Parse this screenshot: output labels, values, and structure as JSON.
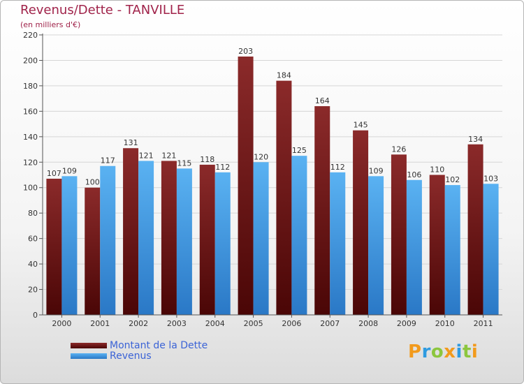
{
  "chart_data": {
    "type": "bar",
    "title": "Revenus/Dette - TANVILLE",
    "subtitle": "(en milliers d'€)",
    "categories": [
      "2000",
      "2001",
      "2002",
      "2003",
      "2004",
      "2005",
      "2006",
      "2007",
      "2008",
      "2009",
      "2010",
      "2011"
    ],
    "series": [
      {
        "name": "Montant de la Dette",
        "values": [
          107,
          100,
          131,
          121,
          118,
          203,
          184,
          164,
          145,
          126,
          110,
          134
        ],
        "color": "#7a1c1c"
      },
      {
        "name": "Revenus",
        "values": [
          109,
          117,
          121,
          115,
          112,
          120,
          125,
          112,
          109,
          106,
          102,
          103
        ],
        "color": "#4ea6e8"
      }
    ],
    "ylim": [
      0,
      220
    ],
    "yticks": [
      0,
      20,
      40,
      60,
      80,
      100,
      120,
      140,
      160,
      180,
      200,
      220
    ],
    "grid": true,
    "legend_position": "bottom-left"
  },
  "logo": {
    "text": "Proxiti",
    "letters": [
      {
        "ch": "P",
        "color": "#f29a1c"
      },
      {
        "ch": "r",
        "color": "#2f9be0"
      },
      {
        "ch": "o",
        "color": "#8cc63e"
      },
      {
        "ch": "x",
        "color": "#f29a1c"
      },
      {
        "ch": "i",
        "color": "#2f9be0"
      },
      {
        "ch": "t",
        "color": "#8cc63e"
      },
      {
        "ch": "i",
        "color": "#f29a1c"
      }
    ]
  }
}
